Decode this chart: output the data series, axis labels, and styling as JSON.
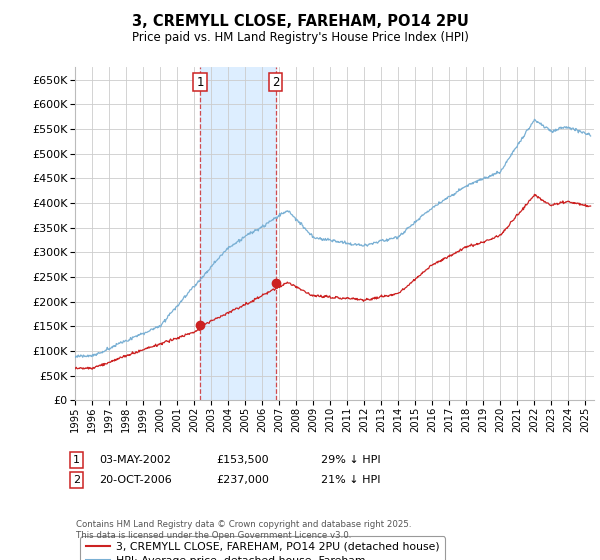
{
  "title": "3, CREMYLL CLOSE, FAREHAM, PO14 2PU",
  "subtitle": "Price paid vs. HM Land Registry's House Price Index (HPI)",
  "hpi_color": "#7ab0d4",
  "property_color": "#cc2222",
  "shaded_color": "#ddeeff",
  "grid_color": "#cccccc",
  "background_color": "#ffffff",
  "ylim": [
    0,
    675000
  ],
  "yticks": [
    0,
    50000,
    100000,
    150000,
    200000,
    250000,
    300000,
    350000,
    400000,
    450000,
    500000,
    550000,
    600000,
    650000
  ],
  "purchase1_date": 2002.35,
  "purchase1_price": 153500,
  "purchase2_date": 2006.8,
  "purchase2_price": 237000,
  "legend_property": "3, CREMYLL CLOSE, FAREHAM, PO14 2PU (detached house)",
  "legend_hpi": "HPI: Average price, detached house, Fareham",
  "footer": "Contains HM Land Registry data © Crown copyright and database right 2025.\nThis data is licensed under the Open Government Licence v3.0.",
  "xmin": 1995.0,
  "xmax": 2025.5
}
